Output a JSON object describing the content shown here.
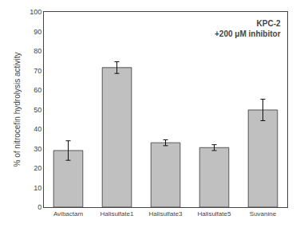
{
  "chart_data": {
    "type": "bar",
    "categories": [
      "Avibactam",
      "Halisulfate1",
      "Halisulfate3",
      "Halisulfate5",
      "Suvanine"
    ],
    "values": [
      29.0,
      71.5,
      33.0,
      30.5,
      49.8
    ],
    "errors": [
      5.0,
      3.0,
      1.5,
      1.5,
      5.5
    ],
    "color": "#c0c0c0",
    "ylabel": "% of nitrocefin hydrolysis activity",
    "annotations": [
      "KPC-2",
      "+200 μM inhibitor"
    ],
    "ylim": [
      0,
      100
    ],
    "yticks": [
      0,
      10,
      20,
      30,
      40,
      50,
      60,
      70,
      80,
      90,
      100
    ],
    "grid": false
  }
}
